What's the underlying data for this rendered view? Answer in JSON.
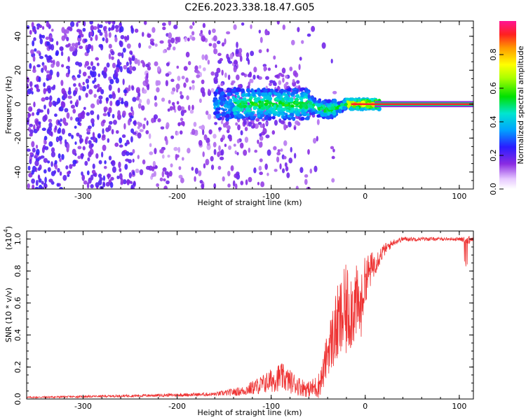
{
  "title": "C2E6.2023.338.18.47.G05",
  "chart_data": [
    {
      "type": "heatmap",
      "xlabel": "Height of straight line (km)",
      "ylabel": "Frequency (Hz)",
      "xlim": [
        -360,
        115
      ],
      "ylim": [
        -50,
        49
      ],
      "xticks": [
        -300,
        -200,
        -100,
        0,
        100
      ],
      "yticks": [
        -40,
        -20,
        0,
        20,
        40
      ],
      "colorbar": {
        "label": "Normalized spectral amplitude",
        "range": [
          0,
          1
        ],
        "ticks": [
          0.0,
          0.2,
          0.4,
          0.6,
          0.8
        ],
        "tick_labels": [
          "0.0",
          "0.2",
          "0.4",
          "0.6",
          "0.8"
        ]
      },
      "grid": false
    },
    {
      "type": "line",
      "xlabel": "Height of straight line (km)",
      "ylabel": "SNR (10 * v/v)",
      "y_multiplier_label": "(x10",
      "y_multiplier_exp": "4",
      "y_multiplier_close": ")",
      "xlim": [
        -360,
        115
      ],
      "ylim": [
        0,
        1.05
      ],
      "xticks": [
        -300,
        -200,
        -100,
        0,
        100
      ],
      "yticks": [
        0.0,
        0.2,
        0.4,
        0.6,
        0.8,
        1.0
      ],
      "ytick_labels": [
        "0.0",
        "0.2",
        "0.4",
        "0.6",
        "0.8",
        "1.0"
      ],
      "series": [
        {
          "color": "#ee3333",
          "x": [
            -360,
            -300,
            -250,
            -200,
            -160,
            -130,
            -110,
            -90,
            -70,
            -60,
            -50,
            -45,
            -40,
            -30,
            -20,
            -10,
            -5,
            0,
            10,
            20,
            30,
            40,
            60,
            80,
            100,
            110,
            115
          ],
          "y": [
            0.01,
            0.015,
            0.02,
            0.025,
            0.03,
            0.05,
            0.09,
            0.14,
            0.08,
            0.06,
            0.08,
            0.15,
            0.3,
            0.45,
            0.55,
            0.6,
            0.55,
            0.75,
            0.85,
            0.93,
            0.98,
            1.0,
            1.0,
            1.0,
            1.0,
            0.99,
            1.0
          ],
          "noise_amp": [
            0.005,
            0.006,
            0.008,
            0.01,
            0.012,
            0.03,
            0.06,
            0.09,
            0.06,
            0.05,
            0.08,
            0.1,
            0.15,
            0.25,
            0.3,
            0.25,
            0.2,
            0.15,
            0.08,
            0.04,
            0.02,
            0.015,
            0.012,
            0.01,
            0.01,
            0.03,
            0.01
          ]
        }
      ],
      "grid": false
    }
  ]
}
